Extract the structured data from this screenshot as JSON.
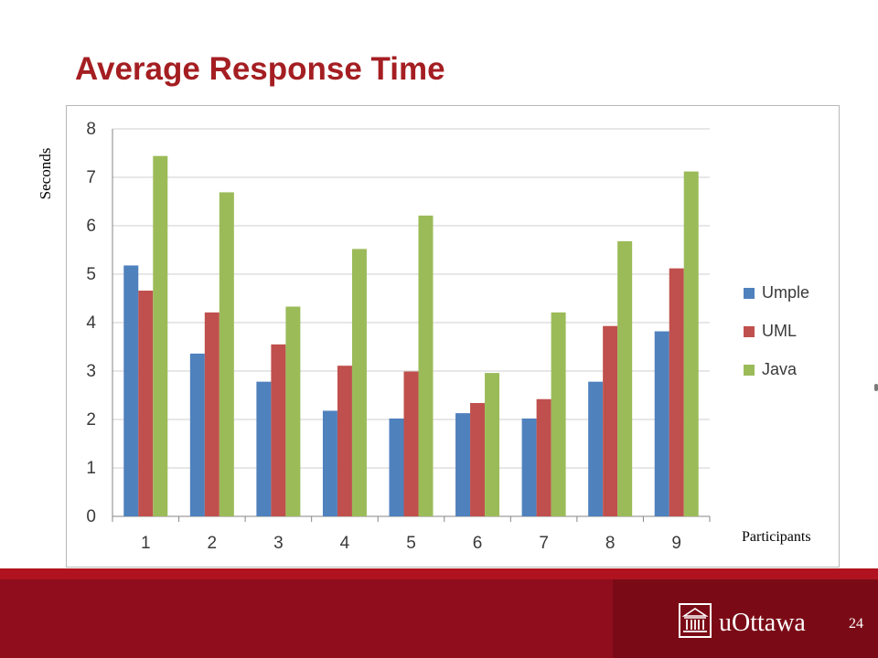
{
  "slide": {
    "title": "Average Response Time",
    "ylabel": "Seconds",
    "xlabel": "Participants",
    "page_number": "24",
    "logo_text": "uOttawa"
  },
  "colors": {
    "title": "#a41e22",
    "footer": "#8f0d1c",
    "umple": "#4f81bd",
    "uml": "#c0504d",
    "java": "#9bbb59"
  },
  "icons": {
    "logo": "building-icon"
  },
  "chart_data": {
    "type": "bar",
    "categories": [
      "1",
      "2",
      "3",
      "4",
      "5",
      "6",
      "7",
      "8",
      "9"
    ],
    "series": [
      {
        "name": "Umple",
        "color": "#4f81bd",
        "values": [
          5.18,
          3.36,
          2.78,
          2.18,
          2.02,
          2.13,
          2.02,
          2.78,
          3.82
        ]
      },
      {
        "name": "UML",
        "color": "#c0504d",
        "values": [
          4.66,
          4.21,
          3.55,
          3.11,
          2.99,
          2.34,
          2.42,
          3.93,
          5.12
        ]
      },
      {
        "name": "Java",
        "color": "#9bbb59",
        "values": [
          7.44,
          6.69,
          4.33,
          5.52,
          6.21,
          2.96,
          4.21,
          5.68,
          7.12
        ]
      }
    ],
    "ylim": [
      0,
      8
    ],
    "yticks": [
      "0",
      "1",
      "2",
      "3",
      "4",
      "5",
      "6",
      "7",
      "8"
    ],
    "grid": true,
    "legend": "right"
  }
}
